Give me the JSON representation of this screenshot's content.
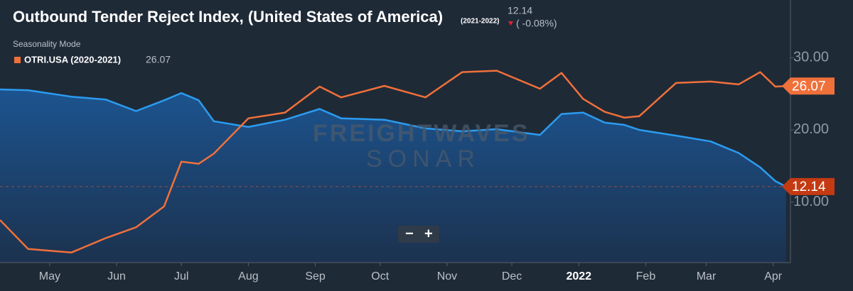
{
  "chart_data": {
    "type": "line",
    "title": "Outbound Tender Reject Index, (United States of America)",
    "subtitle": "Seasonality Mode",
    "watermark": [
      "FREIGHTWAVES",
      "SONAR"
    ],
    "header_value": "12.14",
    "header_change": "( -0.08%)",
    "zoom_controls": [
      "−",
      "+"
    ],
    "x": [
      7,
      20,
      40,
      56,
      70,
      83,
      91,
      99,
      106,
      122,
      139,
      155,
      165,
      185,
      204,
      221,
      237,
      257,
      267,
      277,
      287,
      296,
      303,
      320,
      336,
      349,
      359,
      366,
      371
    ],
    "xlim": [
      7,
      373
    ],
    "xticks": [
      {
        "value": 30,
        "label": "May"
      },
      {
        "value": 61,
        "label": "Jun"
      },
      {
        "value": 91,
        "label": "Jul"
      },
      {
        "value": 122,
        "label": "Aug"
      },
      {
        "value": 153,
        "label": "Sep"
      },
      {
        "value": 183,
        "label": "Oct"
      },
      {
        "value": 214,
        "label": "Nov"
      },
      {
        "value": 244,
        "label": "Dec"
      },
      {
        "value": 275,
        "label": "2022"
      },
      {
        "value": 306,
        "label": "Feb"
      },
      {
        "value": 334,
        "label": "Mar"
      },
      {
        "value": 365,
        "label": "Apr"
      }
    ],
    "ylim": [
      1.6,
      38
    ],
    "yticks": [
      {
        "value": 10,
        "label": "10.00"
      },
      {
        "value": 20,
        "label": "20.00"
      },
      {
        "value": 30,
        "label": "30.00"
      }
    ],
    "grid": false,
    "series": [
      {
        "name": "(2021-2022)",
        "color": "#2b9cf0",
        "area": true,
        "last_label": "12.14",
        "tag_color": "#c43a12",
        "values": [
          25.6,
          25.5,
          24.6,
          24.2,
          22.6,
          24.1,
          25.1,
          24.1,
          21.2,
          20.4,
          21.4,
          22.9,
          21.6,
          21.4,
          20.2,
          19.8,
          20.1,
          19.3,
          22.2,
          22.4,
          21.0,
          20.7,
          20.0,
          19.2,
          18.4,
          16.8,
          14.8,
          12.9,
          12.14
        ]
      },
      {
        "name": "OTRI.USA (2020-2021)",
        "color": "#f0703a",
        "area": false,
        "last_label": "26.07",
        "tag_color": "#f0703a",
        "values": [
          7.5,
          3.5,
          3.0,
          5.0,
          6.5,
          9.4,
          15.6,
          15.3,
          16.7,
          21.6,
          22.4,
          26.0,
          24.5,
          26.1,
          24.5,
          28.0,
          28.2,
          25.7,
          27.9,
          24.3,
          22.5,
          21.7,
          21.9,
          26.5,
          26.7,
          26.3,
          28.0,
          26.0,
          26.07
        ]
      }
    ]
  }
}
